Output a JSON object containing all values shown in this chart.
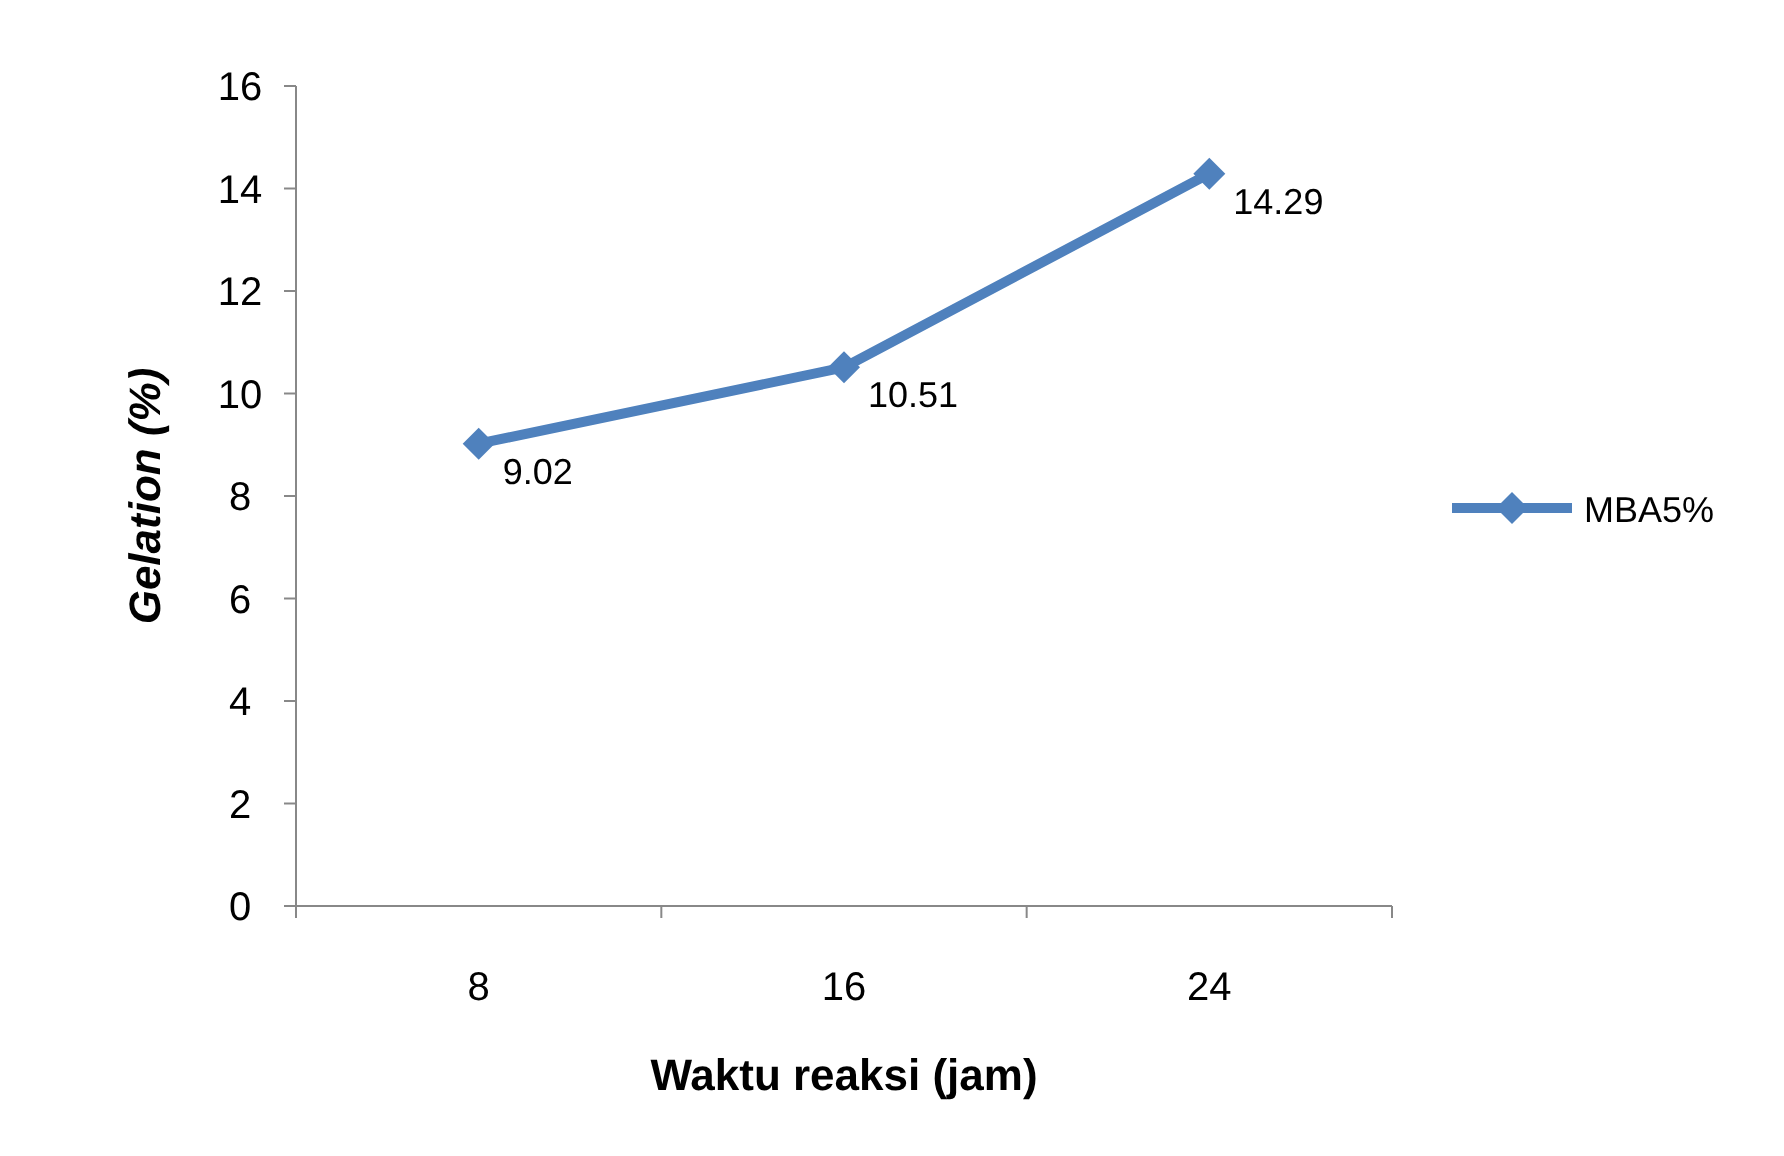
{
  "chart_data": {
    "type": "line",
    "xlabel": "Waktu reaksi (jam)",
    "ylabel": "Gelation (%)",
    "categories": [
      "8",
      "16",
      "24"
    ],
    "series": [
      {
        "name": "MBA5%",
        "color": "#4f81bd",
        "values": [
          9.02,
          10.51,
          14.29
        ]
      }
    ],
    "ylim": [
      0,
      16
    ],
    "yticks": [
      0,
      2,
      4,
      6,
      8,
      10,
      12,
      14,
      16
    ],
    "marker": "diamond",
    "data_labels": true,
    "legend": "right",
    "grid": false
  }
}
